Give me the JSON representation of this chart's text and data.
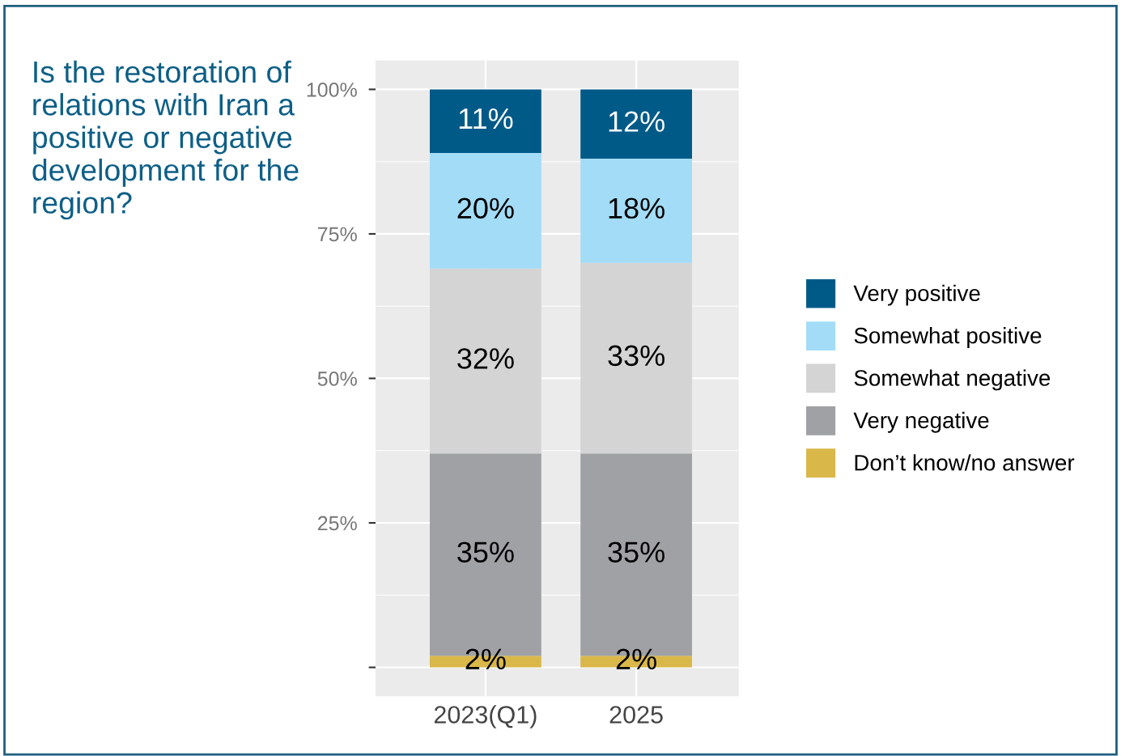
{
  "chart_data": {
    "type": "bar",
    "stacked": true,
    "title": "Is the restoration of relations with Iran a positive or negative development for the region?",
    "categories": [
      "2023(Q1)",
      "2025"
    ],
    "series": [
      {
        "name": "Don’t know/no answer",
        "color": "#d9b749",
        "values": [
          2,
          2
        ],
        "value_labels": [
          "2%",
          "2%"
        ]
      },
      {
        "name": "Very negative",
        "color": "#a0a1a5",
        "values": [
          35,
          35
        ],
        "value_labels": [
          "35%",
          "35%"
        ]
      },
      {
        "name": "Somewhat negative",
        "color": "#d4d4d4",
        "values": [
          32,
          33
        ],
        "value_labels": [
          "32%",
          "33%"
        ]
      },
      {
        "name": "Somewhat positive",
        "color": "#a3dcf7",
        "values": [
          20,
          18
        ],
        "value_labels": [
          "20%",
          "18%"
        ]
      },
      {
        "name": "Very positive",
        "color": "#005a87",
        "values": [
          11,
          12
        ],
        "value_labels": [
          "11%",
          "12%"
        ]
      }
    ],
    "ylim": [
      -5,
      105
    ],
    "yticks": [
      {
        "value": 0,
        "label": null
      },
      {
        "value": 25,
        "label": "25%"
      },
      {
        "value": 50,
        "label": "50%"
      },
      {
        "value": 75,
        "label": "75%"
      },
      {
        "value": 100,
        "label": "100%"
      }
    ],
    "grid": true,
    "legend": "right"
  }
}
